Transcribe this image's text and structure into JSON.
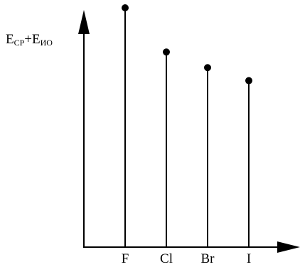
{
  "chart_data": {
    "type": "scatter",
    "style": "lollipop",
    "categories": [
      "F",
      "Cl",
      "Br",
      "I"
    ],
    "values": [
      92,
      75,
      69,
      64
    ],
    "ylabel": {
      "e1": "E",
      "sub1": "CP",
      "plus": "+",
      "e2": "E",
      "sub2": "ИО"
    },
    "xlabel": "",
    "ylim": [
      0,
      95
    ],
    "grid": false,
    "legend": "none",
    "colors": {
      "axis": "#000000",
      "stem": "#000000",
      "marker": "#000000"
    }
  }
}
